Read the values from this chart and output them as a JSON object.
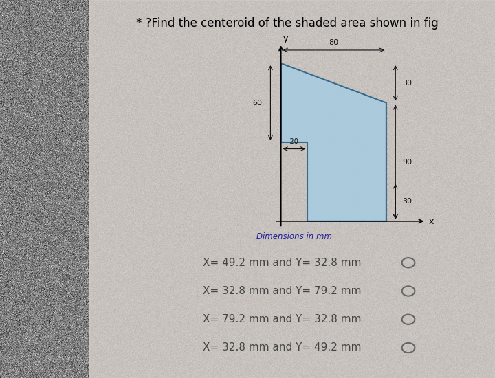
{
  "title": "* ?Find the centeroid of the shaded area shown in fig",
  "title_fontsize": 12,
  "bg_color": "#b8b0aa",
  "shape_color": "#a8cce0",
  "shape_edge_color": "#3a6a8a",
  "dim_color": "#111111",
  "shape_vertices_x": [
    0,
    80,
    80,
    20,
    20,
    0,
    0
  ],
  "shape_vertices_y": [
    120,
    90,
    0,
    0,
    60,
    60,
    120
  ],
  "options": [
    "X= 49.2 mm and Y= 32.8 mm",
    "X= 32.8 mm and Y= 79.2 mm",
    "X= 79.2 mm and Y= 32.8 mm",
    "X= 32.8 mm and Y= 49.2 mm"
  ],
  "options_color": "#444444",
  "options_fontsize": 11
}
